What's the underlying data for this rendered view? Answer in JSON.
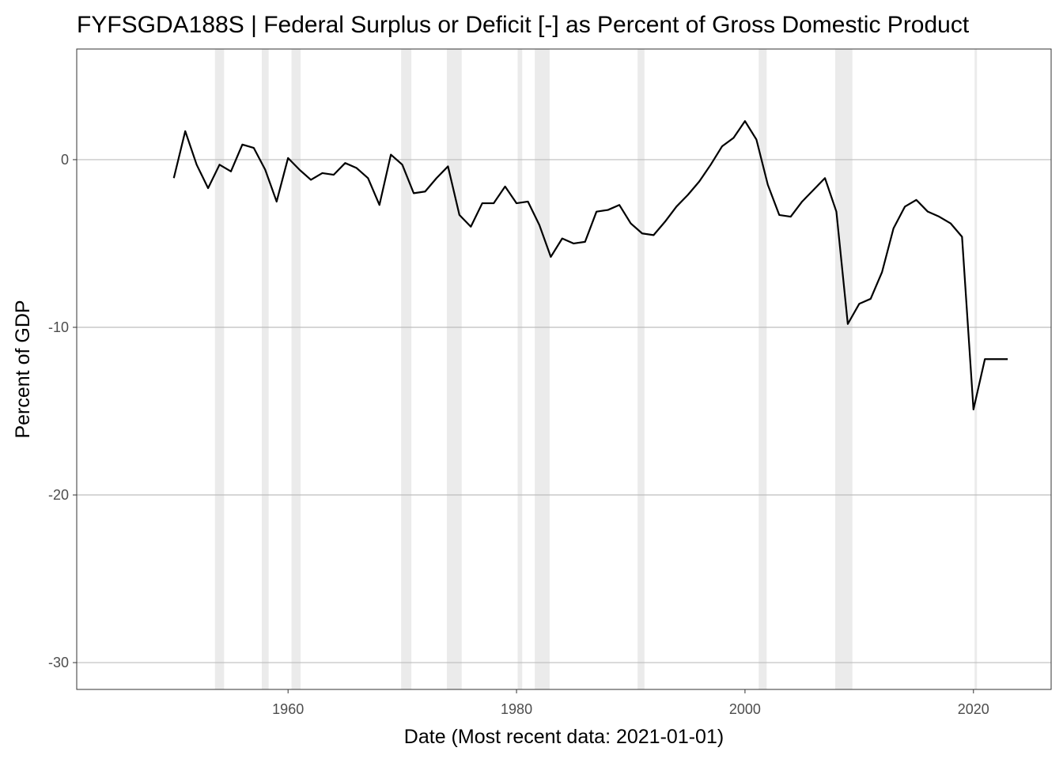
{
  "chart_data": {
    "type": "line",
    "title": "FYFSGDA188S | Federal Surplus or Deficit [-] as Percent of Gross Domestic Product",
    "xlabel": "Date (Most recent data: 2021-01-01)",
    "ylabel": "Percent of GDP",
    "xlim": [
      1941.5,
      2026.8
    ],
    "ylim": [
      -31.6,
      6.6
    ],
    "x_ticks": [
      1960,
      1980,
      2000,
      2020
    ],
    "x_tick_labels": [
      "1960",
      "1980",
      "2000",
      "2020"
    ],
    "y_ticks": [
      0,
      -10,
      -20,
      -30
    ],
    "y_tick_labels": [
      "0",
      "-10",
      "-20",
      "-30"
    ],
    "grid": true,
    "recessions": [
      [
        1953.6,
        1954.4
      ],
      [
        1957.7,
        1958.3
      ],
      [
        1960.3,
        1961.1
      ],
      [
        1969.9,
        1970.8
      ],
      [
        1973.9,
        1975.2
      ],
      [
        1980.1,
        1980.5
      ],
      [
        1981.6,
        1982.9
      ],
      [
        1990.6,
        1991.2
      ],
      [
        2001.2,
        2001.9
      ],
      [
        2007.9,
        2009.4
      ],
      [
        2020.1,
        2020.3
      ]
    ],
    "series": [
      {
        "name": "FYFSGDA188S",
        "x": [
          1950,
          1951,
          1952,
          1953,
          1954,
          1955,
          1956,
          1957,
          1958,
          1959,
          1960,
          1961,
          1962,
          1963,
          1964,
          1965,
          1966,
          1967,
          1968,
          1969,
          1970,
          1971,
          1972,
          1973,
          1974,
          1975,
          1976,
          1977,
          1978,
          1979,
          1980,
          1981,
          1982,
          1983,
          1984,
          1985,
          1986,
          1987,
          1988,
          1989,
          1990,
          1991,
          1992,
          1993,
          1994,
          1995,
          1996,
          1997,
          1998,
          1999,
          2000,
          2001,
          2002,
          2003,
          2004,
          2005,
          2006,
          2007,
          2008,
          2009,
          2010,
          2011,
          2012,
          2013,
          2014,
          2015,
          2016,
          2017,
          2018,
          2019,
          2020,
          2021,
          2022,
          2023
        ],
        "values": [
          -1.1,
          1.7,
          -0.3,
          -1.7,
          -0.3,
          -0.7,
          0.9,
          0.7,
          -0.6,
          -2.5,
          0.1,
          -0.6,
          -1.2,
          -0.8,
          -0.9,
          -0.2,
          -0.5,
          -1.1,
          -2.7,
          0.3,
          -0.3,
          -2.0,
          -1.9,
          -1.1,
          -0.4,
          -3.3,
          -4.0,
          -2.6,
          -2.6,
          -1.6,
          -2.6,
          -2.5,
          -3.9,
          -5.8,
          -4.7,
          -5.0,
          -4.9,
          -3.1,
          -3.0,
          -2.7,
          -3.8,
          -4.4,
          -4.5,
          -3.7,
          -2.8,
          -2.1,
          -1.3,
          -0.3,
          0.8,
          1.3,
          2.3,
          1.2,
          -1.5,
          -3.3,
          -3.4,
          -2.5,
          -1.8,
          -1.1,
          -3.1,
          -9.8,
          -8.6,
          -8.3,
          -6.7,
          -4.1,
          -2.8,
          -2.4,
          -3.1,
          -3.4,
          -3.8,
          -4.6,
          -14.9,
          -11.9,
          -11.9,
          -11.9
        ]
      }
    ]
  }
}
